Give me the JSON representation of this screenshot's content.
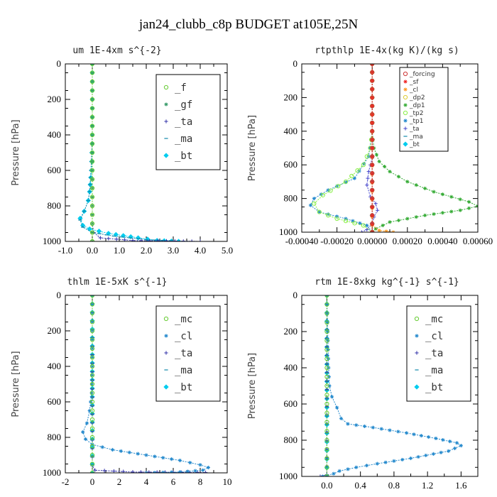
{
  "title": "jan24_clubb_c8p  BUDGET at105E,25N",
  "chart_data": [
    {
      "type": "line",
      "title": "um  1E-4xm s^{-2}",
      "ylabel": "Pressure [hPa]",
      "xlim": [
        -1.0,
        5.0
      ],
      "ylim": [
        1000,
        0
      ],
      "xticks": [
        "-1.0",
        "0.0",
        "1.0",
        "2.0",
        "3.0",
        "4.0",
        "5.0"
      ],
      "xtick_values": [
        -1,
        0,
        1,
        2,
        3,
        4,
        5
      ],
      "yticks": [
        "0",
        "200",
        "400",
        "600",
        "800",
        "1000"
      ],
      "ytick_values": [
        0,
        200,
        400,
        600,
        800,
        1000
      ],
      "legend_style": "large",
      "series": [
        {
          "name": "_f",
          "color": "#66cc33",
          "marker": "circle",
          "points": [
            [
              0,
              0
            ],
            [
              0,
              100
            ],
            [
              0,
              200
            ],
            [
              0,
              300
            ],
            [
              0,
              400
            ],
            [
              0,
              500
            ],
            [
              0,
              600
            ],
            [
              0,
              700
            ],
            [
              0,
              800
            ],
            [
              0,
              900
            ],
            [
              0,
              1000
            ]
          ]
        },
        {
          "name": "_gf",
          "color": "#339966",
          "marker": "star",
          "points": [
            [
              0,
              0
            ],
            [
              0,
              100
            ],
            [
              0,
              200
            ],
            [
              0,
              300
            ],
            [
              0,
              400
            ],
            [
              0,
              500
            ],
            [
              0,
              600
            ],
            [
              0,
              700
            ],
            [
              0,
              800
            ],
            [
              0,
              900
            ],
            [
              0,
              1000
            ]
          ]
        },
        {
          "name": "_ta",
          "color": "#3333aa",
          "marker": "plus",
          "points": [
            [
              0,
              0
            ],
            [
              0,
              500
            ],
            [
              0,
              900
            ],
            [
              0.05,
              950
            ],
            [
              0.3,
              980
            ],
            [
              1.5,
              995
            ],
            [
              4.0,
              1000
            ]
          ]
        },
        {
          "name": "_ma",
          "color": "#1188aa",
          "marker": "dash",
          "points": [
            [
              0,
              0
            ],
            [
              0,
              400
            ],
            [
              -0.05,
              600
            ],
            [
              -0.1,
              720
            ],
            [
              -0.15,
              770
            ],
            [
              -0.3,
              830
            ],
            [
              -0.45,
              880
            ],
            [
              -0.35,
              920
            ],
            [
              0,
              950
            ],
            [
              0.8,
              970
            ],
            [
              2.0,
              990
            ],
            [
              3.5,
              1000
            ]
          ]
        },
        {
          "name": "_bt",
          "color": "#00ccee",
          "marker": "diamond",
          "points": [
            [
              0,
              0
            ],
            [
              0,
              400
            ],
            [
              -0.03,
              600
            ],
            [
              -0.1,
              720
            ],
            [
              -0.15,
              770
            ],
            [
              -0.3,
              830
            ],
            [
              -0.45,
              870
            ],
            [
              -0.35,
              910
            ],
            [
              -0.1,
              930
            ],
            [
              0.6,
              955
            ],
            [
              1.7,
              980
            ],
            [
              2.4,
              995
            ],
            [
              3.2,
              1000
            ]
          ]
        }
      ]
    },
    {
      "type": "line",
      "title": "rtpthlp  1E-4x(kg K)/(kg s)",
      "ylabel": "Pressure [hPa]",
      "xlim": [
        -0.0004,
        0.0006
      ],
      "ylim": [
        1000,
        0
      ],
      "xticks": [
        "-0.00040",
        "-0.00020",
        "0.00000",
        "0.00020",
        "0.00040",
        "0.00060"
      ],
      "xtick_values": [
        -0.0004,
        -0.0002,
        0,
        0.0002,
        0.0004,
        0.0006
      ],
      "yticks": [
        "0",
        "200",
        "400",
        "600",
        "800",
        "1000"
      ],
      "ytick_values": [
        0,
        200,
        400,
        600,
        800,
        1000
      ],
      "legend_style": "small",
      "series": [
        {
          "name": "_forcing",
          "color": "#cc3333",
          "marker": "circle",
          "points": [
            [
              0,
              0
            ],
            [
              0,
              100
            ],
            [
              0,
              200
            ],
            [
              0,
              300
            ],
            [
              0,
              400
            ],
            [
              0,
              500
            ],
            [
              0,
              600
            ],
            [
              0,
              700
            ],
            [
              0,
              800
            ],
            [
              0,
              900
            ],
            [
              0,
              1000
            ]
          ]
        },
        {
          "name": "_sf",
          "color": "#ee2222",
          "marker": "star",
          "points": [
            [
              0,
              0
            ],
            [
              0,
              1000
            ]
          ]
        },
        {
          "name": "_cl",
          "color": "#ff9922",
          "marker": "star",
          "points": [
            [
              0,
              0
            ],
            [
              0,
              960
            ],
            [
              4e-05,
              990
            ],
            [
              0.00012,
              1000
            ]
          ]
        },
        {
          "name": "_dp2",
          "color": "#ddcc33",
          "marker": "circle",
          "points": [
            [
              0,
              0
            ],
            [
              0,
              1000
            ]
          ]
        },
        {
          "name": "_dp1",
          "color": "#33aa33",
          "marker": "star",
          "points": [
            [
              0,
              0
            ],
            [
              0,
              400
            ],
            [
              1e-05,
              500
            ],
            [
              4e-05,
              580
            ],
            [
              0.0001,
              640
            ],
            [
              0.0002,
              700
            ],
            [
              0.00035,
              760
            ],
            [
              0.00055,
              820
            ],
            [
              0.0006,
              845
            ],
            [
              0.0005,
              870
            ],
            [
              0.0003,
              900
            ],
            [
              0.0001,
              940
            ],
            [
              2e-05,
              980
            ],
            [
              0,
              1000
            ]
          ]
        },
        {
          "name": "_tp2",
          "color": "#88ee44",
          "marker": "circle",
          "points": [
            [
              0,
              0
            ],
            [
              0,
              400
            ],
            [
              -1e-05,
              500
            ],
            [
              -5e-05,
              600
            ],
            [
              -0.00015,
              700
            ],
            [
              -0.00028,
              780
            ],
            [
              -0.00033,
              830
            ],
            [
              -0.0003,
              880
            ],
            [
              -0.0002,
              920
            ],
            [
              -5e-05,
              960
            ],
            [
              0,
              1000
            ]
          ]
        },
        {
          "name": "_tp1",
          "color": "#2288cc",
          "marker": "star",
          "points": [
            [
              0,
              0
            ],
            [
              0,
              400
            ],
            [
              -2e-05,
              550
            ],
            [
              -0.0001,
              680
            ],
            [
              -0.00025,
              750
            ],
            [
              -0.00033,
              800
            ],
            [
              -0.00035,
              840
            ],
            [
              -0.0003,
              880
            ],
            [
              -0.00015,
              920
            ],
            [
              -3e-05,
              960
            ],
            [
              0,
              1000
            ]
          ]
        },
        {
          "name": "_ta",
          "color": "#4444cc",
          "marker": "plus",
          "points": [
            [
              0,
              0
            ],
            [
              0,
              560
            ],
            [
              -2e-05,
              640
            ],
            [
              -3e-05,
              720
            ],
            [
              -1e-05,
              790
            ],
            [
              2e-05,
              830
            ],
            [
              3e-05,
              870
            ],
            [
              1e-05,
              910
            ],
            [
              0,
              950
            ],
            [
              -3e-05,
              985
            ],
            [
              -6e-05,
              1000
            ]
          ]
        },
        {
          "name": "_ma",
          "color": "#1188aa",
          "marker": "dash",
          "points": [
            [
              0,
              0
            ],
            [
              0,
              1000
            ]
          ]
        },
        {
          "name": "_bt",
          "color": "#00ccee",
          "marker": "diamond",
          "points": [
            [
              0,
              0
            ],
            [
              0,
              1000
            ]
          ]
        }
      ]
    },
    {
      "type": "line",
      "title": "thlm  1E-5xK s^{-1}",
      "ylabel": "Pressure [hPa]",
      "xlim": [
        -2,
        10
      ],
      "ylim": [
        1000,
        0
      ],
      "xticks": [
        "-2",
        "0",
        "2",
        "4",
        "6",
        "8",
        "10"
      ],
      "xtick_values": [
        -2,
        0,
        2,
        4,
        6,
        8,
        10
      ],
      "yticks": [
        "0",
        "200",
        "400",
        "600",
        "800",
        "1000"
      ],
      "ytick_values": [
        0,
        200,
        400,
        600,
        800,
        1000
      ],
      "legend_style": "large",
      "series": [
        {
          "name": "_mc",
          "color": "#66cc33",
          "marker": "circle",
          "points": [
            [
              0,
              0
            ],
            [
              0,
              100
            ],
            [
              0,
              200
            ],
            [
              0,
              300
            ],
            [
              0,
              400
            ],
            [
              0,
              500
            ],
            [
              0,
              600
            ],
            [
              0,
              700
            ],
            [
              0,
              800
            ],
            [
              0,
              900
            ],
            [
              0,
              1000
            ]
          ]
        },
        {
          "name": "_cl",
          "color": "#2288cc",
          "marker": "star",
          "points": [
            [
              0,
              0
            ],
            [
              0,
              400
            ],
            [
              -0.05,
              550
            ],
            [
              -0.2,
              650
            ],
            [
              -0.4,
              720
            ],
            [
              -0.7,
              770
            ],
            [
              -0.5,
              810
            ],
            [
              0,
              840
            ],
            [
              1.5,
              870
            ],
            [
              4,
              900
            ],
            [
              6.5,
              930
            ],
            [
              8,
              955
            ],
            [
              8.6,
              970
            ],
            [
              8.2,
              985
            ],
            [
              6.5,
              995
            ],
            [
              4,
              1000
            ]
          ]
        },
        {
          "name": "_ta",
          "color": "#3333aa",
          "marker": "plus",
          "points": [
            [
              0,
              0
            ],
            [
              0,
              960
            ],
            [
              0.2,
              985
            ],
            [
              3,
              995
            ],
            [
              8.4,
              998
            ]
          ]
        },
        {
          "name": "_ma",
          "color": "#1188aa",
          "marker": "dash",
          "points": [
            [
              0,
              0
            ],
            [
              0,
              1000
            ]
          ]
        },
        {
          "name": "_bt",
          "color": "#00ccee",
          "marker": "diamond",
          "points": [
            [
              0,
              0
            ],
            [
              0,
              1000
            ]
          ]
        }
      ]
    },
    {
      "type": "line",
      "title": "rtm  1E-8xkg kg^{-1} s^{-1}",
      "ylabel": "Pressure [hPa]",
      "xlim": [
        -0.3,
        1.8
      ],
      "ylim": [
        1000,
        0
      ],
      "xticks": [
        "0.0",
        "0.4",
        "0.8",
        "1.2",
        "1.6"
      ],
      "xtick_values": [
        0,
        0.4,
        0.8,
        1.2,
        1.6
      ],
      "yticks": [
        "0",
        "200",
        "400",
        "600",
        "800",
        "1000"
      ],
      "ytick_values": [
        0,
        200,
        400,
        600,
        800,
        1000
      ],
      "legend_style": "large",
      "series": [
        {
          "name": "_mc",
          "color": "#66cc33",
          "marker": "circle",
          "points": [
            [
              0,
              0
            ],
            [
              0,
              100
            ],
            [
              0,
              200
            ],
            [
              0,
              300
            ],
            [
              0,
              400
            ],
            [
              0,
              500
            ],
            [
              0,
              600
            ],
            [
              0,
              700
            ],
            [
              0,
              800
            ],
            [
              0,
              900
            ],
            [
              0,
              1000
            ]
          ]
        },
        {
          "name": "_cl",
          "color": "#2288cc",
          "marker": "star",
          "points": [
            [
              0,
              0
            ],
            [
              0.01,
              200
            ],
            [
              0.02,
              400
            ],
            [
              0.03,
              500
            ],
            [
              0.06,
              560
            ],
            [
              0.12,
              620
            ],
            [
              0.17,
              680
            ],
            [
              0.25,
              710
            ],
            [
              0.55,
              730
            ],
            [
              0.95,
              760
            ],
            [
              1.3,
              790
            ],
            [
              1.55,
              815
            ],
            [
              1.6,
              830
            ],
            [
              1.45,
              860
            ],
            [
              1.0,
              900
            ],
            [
              0.6,
              930
            ],
            [
              0.35,
              950
            ],
            [
              0.15,
              970
            ],
            [
              0.08,
              985
            ],
            [
              0,
              995
            ],
            [
              -0.05,
              1000
            ]
          ]
        },
        {
          "name": "_ta",
          "color": "#3333aa",
          "marker": "plus",
          "points": [
            [
              0,
              0
            ],
            [
              0,
              990
            ],
            [
              -0.08,
              1000
            ]
          ]
        },
        {
          "name": "_ma",
          "color": "#1188aa",
          "marker": "dash",
          "points": [
            [
              0,
              0
            ],
            [
              0,
              1000
            ]
          ]
        },
        {
          "name": "_bt",
          "color": "#00ccee",
          "marker": "diamond",
          "points": [
            [
              0,
              0
            ],
            [
              0,
              1000
            ]
          ]
        }
      ]
    }
  ]
}
